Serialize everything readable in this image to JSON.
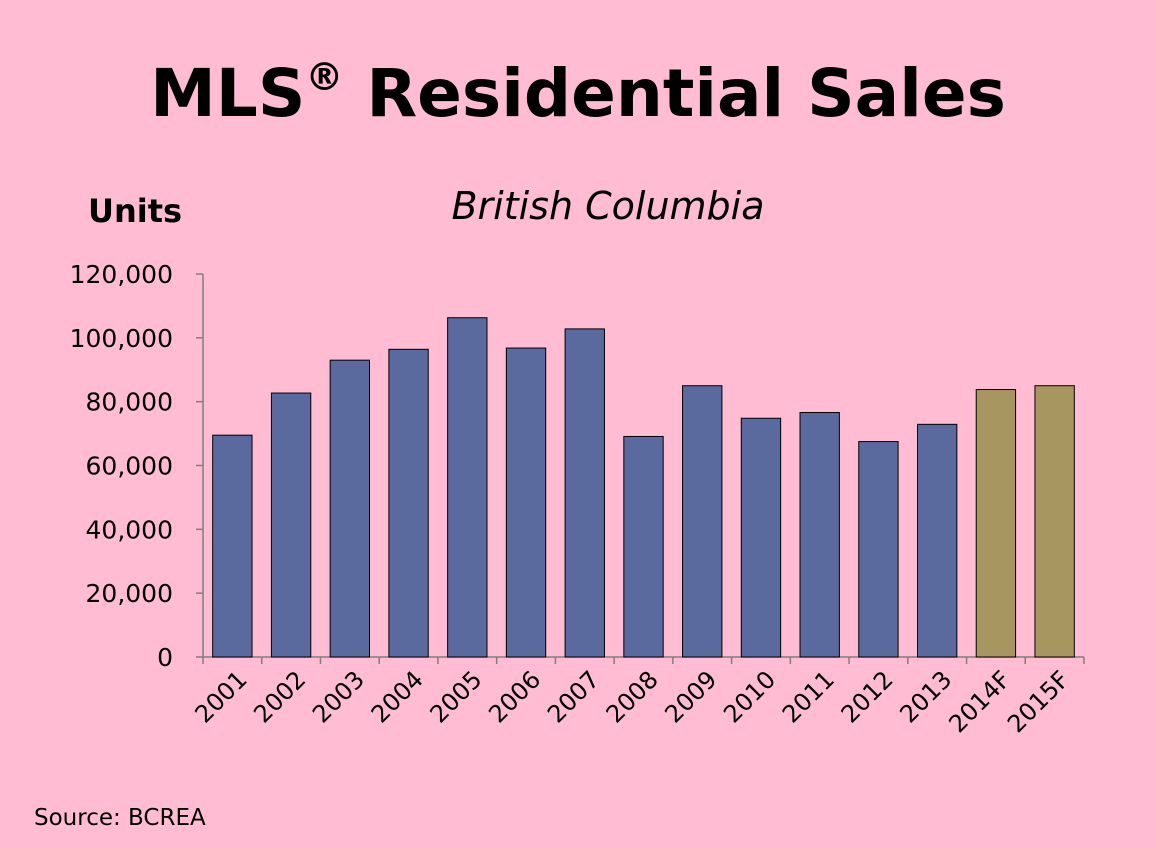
{
  "chart_data": {
    "type": "bar",
    "title": "MLS",
    "title_sup": "®",
    "title_rest": " Residential Sales",
    "subtitle": "British Columbia",
    "ylabel": "Units",
    "source": "Source: BCREA",
    "categories": [
      "2001",
      "2002",
      "2003",
      "2004",
      "2005",
      "2006",
      "2007",
      "2008",
      "2009",
      "2010",
      "2011",
      "2012",
      "2013",
      "2014F",
      "2015F"
    ],
    "values": [
      69500,
      82700,
      93000,
      96400,
      106300,
      96800,
      102800,
      69100,
      85000,
      74800,
      76600,
      67500,
      72900,
      83800,
      85000
    ],
    "forecast": [
      false,
      false,
      false,
      false,
      false,
      false,
      false,
      false,
      false,
      false,
      false,
      false,
      false,
      true,
      true
    ],
    "ylim": [
      0,
      120000
    ],
    "yticks": [
      0,
      20000,
      40000,
      60000,
      80000,
      100000,
      120000
    ],
    "ytick_labels": [
      "0",
      "20,000",
      "40,000",
      "60,000",
      "80,000",
      "100,000",
      "120,000"
    ],
    "grid": false,
    "legend": "none",
    "colors": {
      "actual": "#5b6a9e",
      "forecast": "#a89660",
      "background": "#ffbcd3"
    }
  }
}
